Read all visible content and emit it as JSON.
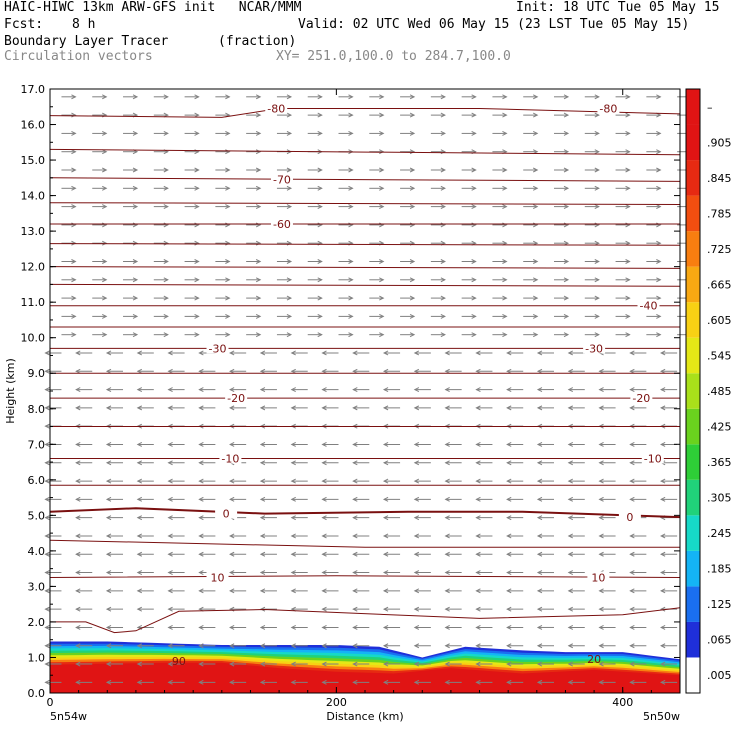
{
  "header": {
    "model": "HAIC-HIWC 13km ARW-GFS init   NCAR/MMM",
    "init": "Init: 18 UTC Tue 05 May 15",
    "fcst_label": "Fcst:",
    "fcst_value": "8 h",
    "valid": "Valid: 02 UTC Wed 06 May 15 (23 LST Tue 05 May 15)",
    "field": "Boundary Layer Tracer",
    "units": "(fraction)",
    "vectors": "Circulation vectors",
    "xy": "XY= 251.0,100.0 to 284.7,100.0"
  },
  "chart_data": {
    "type": "heatmap",
    "xlabel": "Distance (km)",
    "ylabel": "Height (km)",
    "xlim": [
      0,
      440
    ],
    "ylim": [
      0,
      17
    ],
    "x_ticks": [
      0,
      200,
      400
    ],
    "y_ticks": [
      "0.0",
      "1.0",
      "2.0",
      "3.0",
      "4.0",
      "5.0",
      "6.0",
      "7.0",
      "8.0",
      "9.0",
      "10.0",
      "11.0",
      "12.0",
      "13.0",
      "14.0",
      "15.0",
      "16.0",
      "17.0"
    ],
    "x_end_labels": [
      "5n54w",
      "5n50w"
    ],
    "colorbar_labels": [
      ".005",
      ".065",
      ".125",
      ".185",
      ".245",
      ".305",
      ".365",
      ".425",
      ".485",
      ".545",
      ".605",
      ".665",
      ".725",
      ".785",
      ".845",
      ".905",
      "–"
    ],
    "colorbar_colors": [
      "#ffffff",
      "#1f2fd9",
      "#1a6ff0",
      "#14b4f5",
      "#16d9c8",
      "#20d27a",
      "#2ece37",
      "#6ad21e",
      "#a9e01a",
      "#e4e816",
      "#f8d114",
      "#f8a812",
      "#f87e10",
      "#f24e10",
      "#e62a12",
      "#e01414",
      "#e01414"
    ],
    "tracer_boundary_km": [
      [
        0,
        1.45
      ],
      [
        40,
        1.45
      ],
      [
        80,
        1.4
      ],
      [
        120,
        1.35
      ],
      [
        160,
        1.35
      ],
      [
        200,
        1.35
      ],
      [
        230,
        1.3
      ],
      [
        260,
        1.0
      ],
      [
        290,
        1.3
      ],
      [
        330,
        1.2
      ],
      [
        360,
        1.15
      ],
      [
        400,
        1.15
      ],
      [
        440,
        0.95
      ]
    ],
    "tracer_top_red_km": [
      [
        0,
        0.8
      ],
      [
        80,
        0.85
      ],
      [
        120,
        0.85
      ],
      [
        160,
        0.7
      ],
      [
        200,
        0.6
      ],
      [
        240,
        0.55
      ],
      [
        280,
        0.7
      ],
      [
        330,
        0.55
      ],
      [
        380,
        0.65
      ],
      [
        440,
        0.5
      ]
    ],
    "tracer_inner_label": "90",
    "tracer_inner_label2": "20",
    "temp_contours": [
      {
        "label": "-80",
        "pts": [
          [
            0,
            16.25
          ],
          [
            120,
            16.2
          ],
          [
            160,
            16.45
          ],
          [
            300,
            16.45
          ],
          [
            440,
            16.3
          ]
        ],
        "labels_at": [
          [
            158,
            16.45
          ],
          [
            390,
            16.45
          ]
        ]
      },
      {
        "label": "",
        "pts": [
          [
            0,
            15.3
          ],
          [
            440,
            15.15
          ]
        ]
      },
      {
        "label": "-70",
        "pts": [
          [
            0,
            14.5
          ],
          [
            440,
            14.4
          ]
        ],
        "labels_at": [
          [
            162,
            14.45
          ]
        ]
      },
      {
        "label": "",
        "pts": [
          [
            0,
            13.8
          ],
          [
            440,
            13.75
          ]
        ]
      },
      {
        "label": "-60",
        "pts": [
          [
            0,
            13.2
          ],
          [
            440,
            13.2
          ]
        ],
        "labels_at": [
          [
            162,
            13.2
          ]
        ]
      },
      {
        "label": "",
        "pts": [
          [
            0,
            12.65
          ],
          [
            440,
            12.6
          ]
        ]
      },
      {
        "label": "",
        "pts": [
          [
            0,
            12.0
          ],
          [
            440,
            11.95
          ]
        ]
      },
      {
        "label": "",
        "pts": [
          [
            0,
            11.5
          ],
          [
            440,
            11.45
          ]
        ]
      },
      {
        "label": "-40",
        "pts": [
          [
            0,
            10.9
          ],
          [
            440,
            10.9
          ]
        ],
        "labels_at": [
          [
            418,
            10.9
          ]
        ]
      },
      {
        "label": "",
        "pts": [
          [
            0,
            10.3
          ],
          [
            440,
            10.3
          ]
        ]
      },
      {
        "label": "-30",
        "pts": [
          [
            0,
            9.7
          ],
          [
            440,
            9.7
          ]
        ],
        "labels_at": [
          [
            117,
            9.7
          ],
          [
            380,
            9.7
          ]
        ]
      },
      {
        "label": "",
        "pts": [
          [
            0,
            9.0
          ],
          [
            440,
            9.0
          ]
        ]
      },
      {
        "label": "-20",
        "pts": [
          [
            0,
            8.3
          ],
          [
            440,
            8.3
          ]
        ],
        "labels_at": [
          [
            130,
            8.3
          ],
          [
            413,
            8.3
          ]
        ]
      },
      {
        "label": "",
        "pts": [
          [
            0,
            7.5
          ],
          [
            440,
            7.5
          ]
        ]
      },
      {
        "label": "-10",
        "pts": [
          [
            0,
            6.6
          ],
          [
            440,
            6.6
          ]
        ],
        "labels_at": [
          [
            126,
            6.6
          ],
          [
            421,
            6.6
          ]
        ]
      },
      {
        "label": "",
        "pts": [
          [
            0,
            5.85
          ],
          [
            440,
            5.85
          ]
        ]
      },
      {
        "label": "0",
        "pts": [
          [
            0,
            5.1
          ],
          [
            60,
            5.2
          ],
          [
            150,
            5.05
          ],
          [
            250,
            5.1
          ],
          [
            330,
            5.1
          ],
          [
            440,
            4.95
          ]
        ],
        "labels_at": [
          [
            123,
            5.05
          ],
          [
            405,
            4.95
          ]
        ],
        "bold": true
      },
      {
        "label": "",
        "pts": [
          [
            0,
            4.3
          ],
          [
            220,
            4.1
          ],
          [
            440,
            4.1
          ]
        ]
      },
      {
        "label": "10",
        "pts": [
          [
            0,
            3.25
          ],
          [
            200,
            3.3
          ],
          [
            440,
            3.25
          ]
        ],
        "labels_at": [
          [
            117,
            3.25
          ],
          [
            383,
            3.25
          ]
        ]
      },
      {
        "label": "",
        "pts": [
          [
            0,
            2.0
          ],
          [
            25,
            2.0
          ],
          [
            45,
            1.7
          ],
          [
            60,
            1.75
          ],
          [
            90,
            2.3
          ],
          [
            150,
            2.35
          ],
          [
            300,
            2.1
          ],
          [
            400,
            2.2
          ],
          [
            440,
            2.4
          ]
        ]
      }
    ]
  }
}
